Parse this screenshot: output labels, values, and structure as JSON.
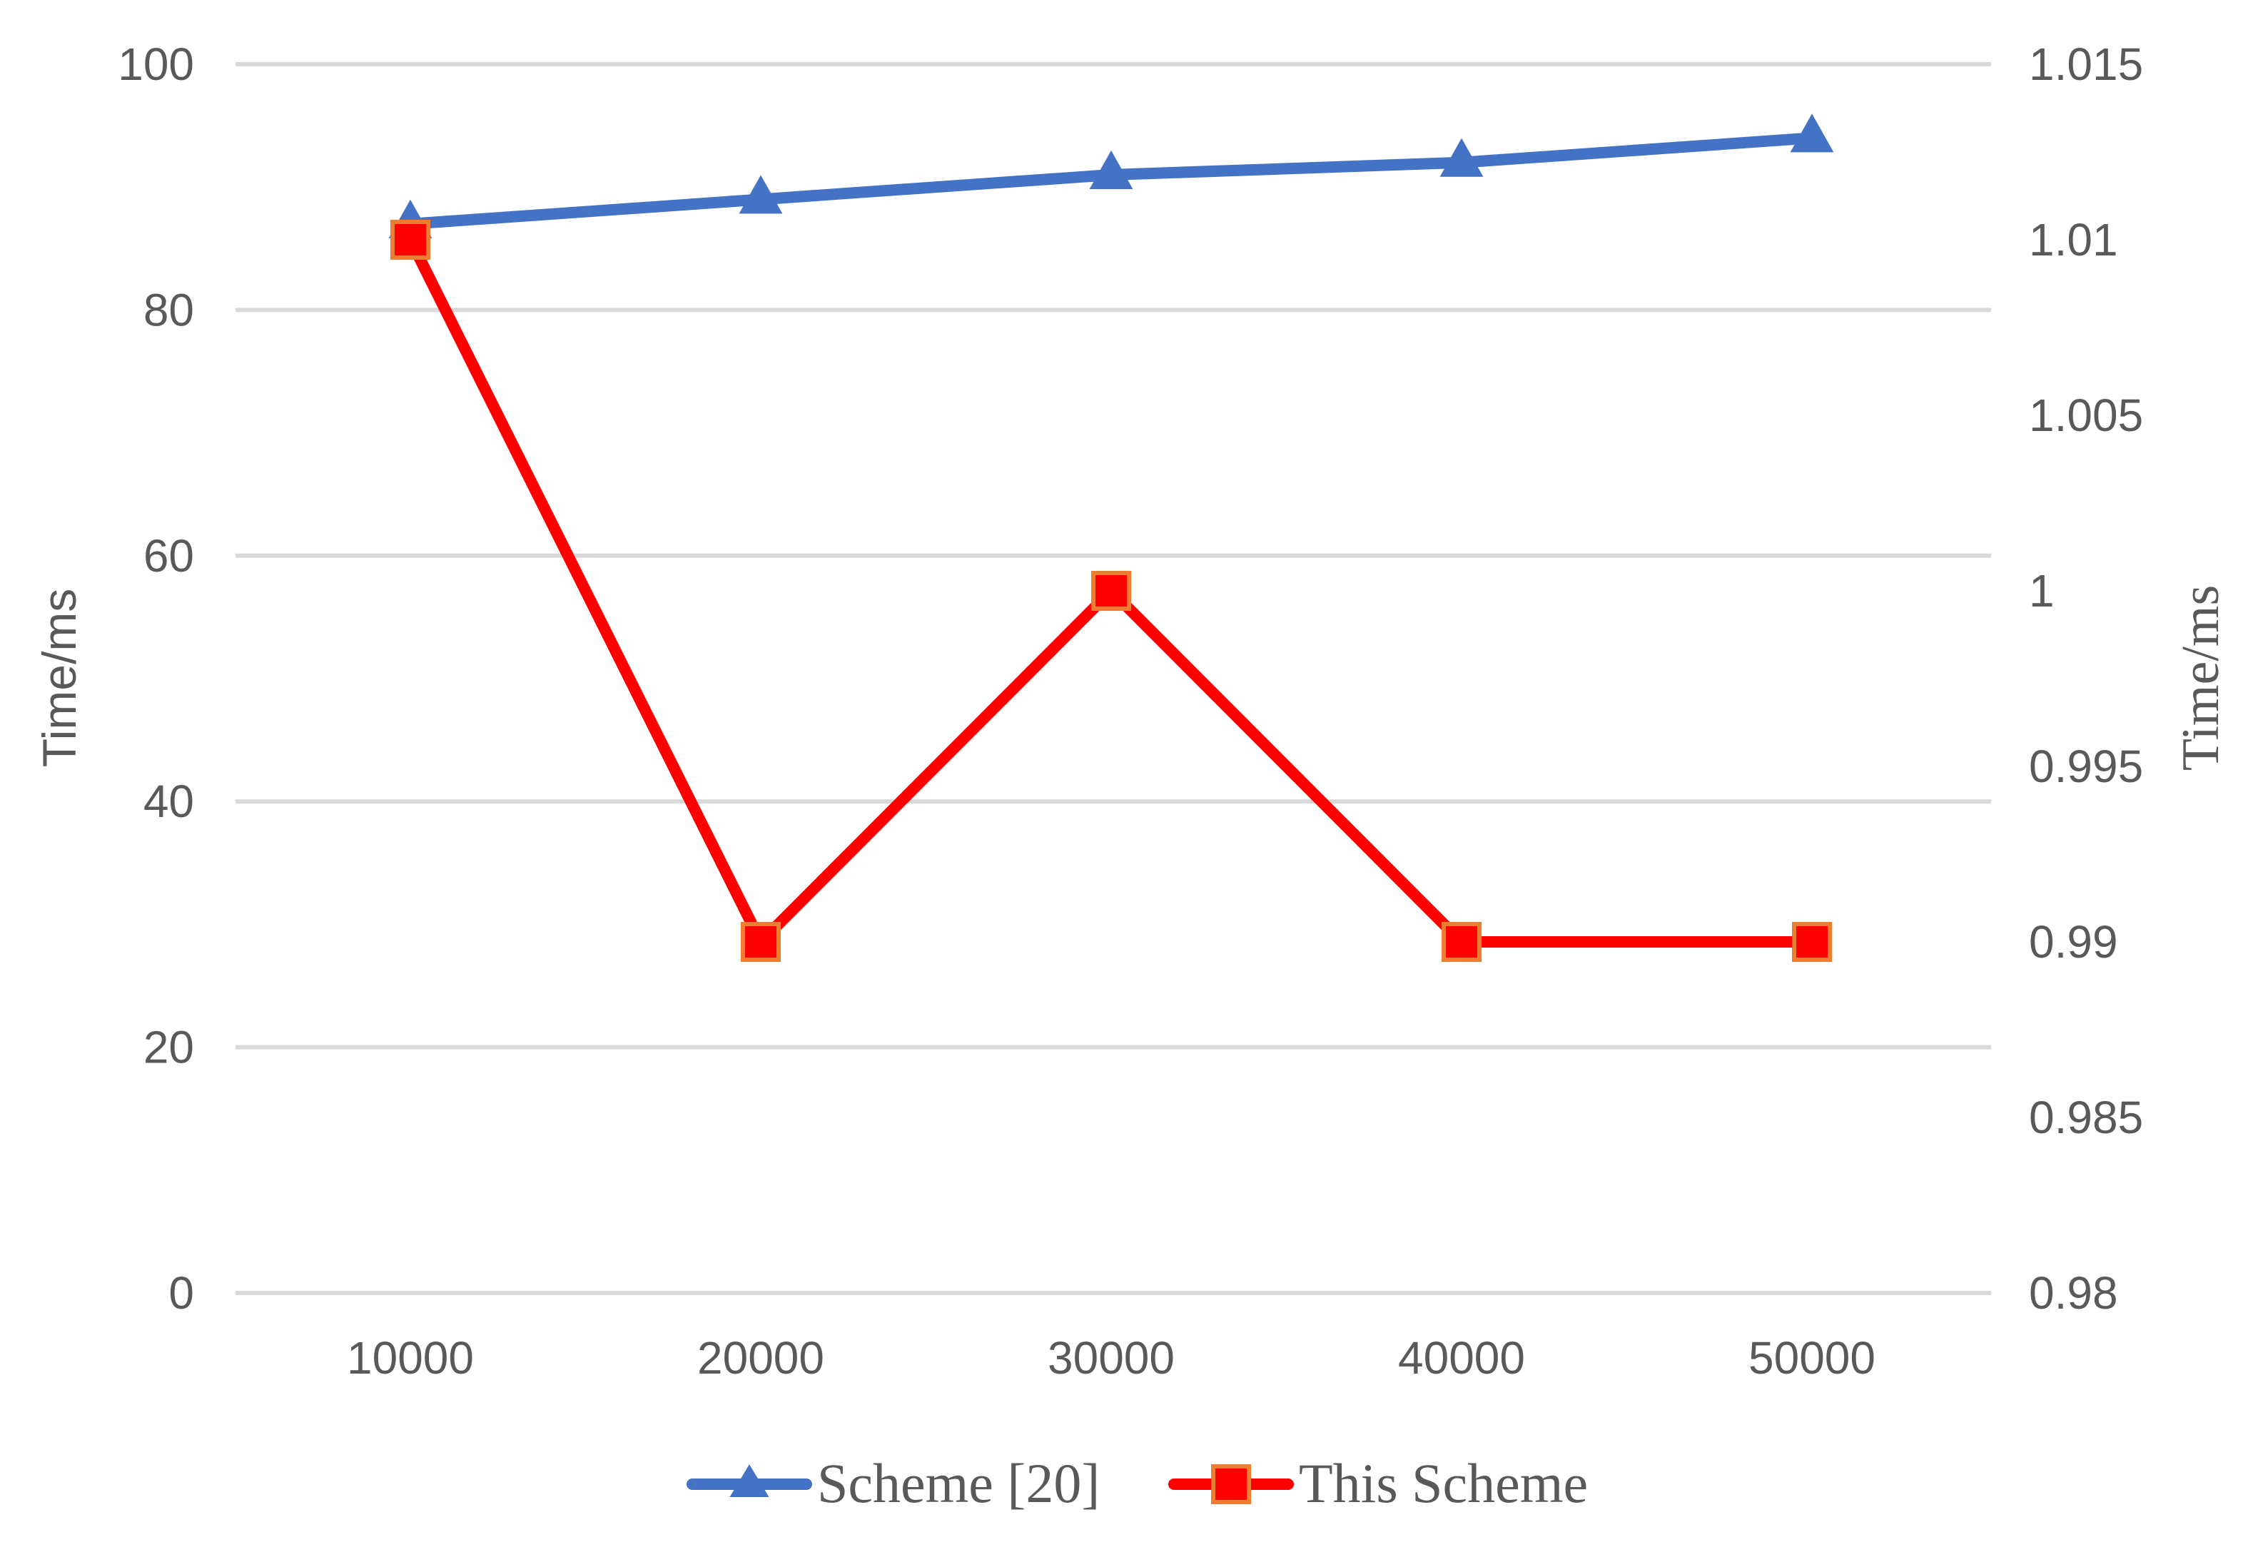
{
  "chart_data": {
    "type": "line",
    "categories": [
      "10000",
      "20000",
      "30000",
      "40000",
      "50000"
    ],
    "y_left": {
      "label": "Time/ms",
      "range": [
        0,
        100
      ],
      "ticks": [
        "0",
        "20",
        "40",
        "60",
        "80",
        "100"
      ]
    },
    "y_right": {
      "label": "Time/ms",
      "range": [
        0.98,
        1.015
      ],
      "ticks": [
        "0.98",
        "0.985",
        "0.99",
        "0.995",
        "1",
        "1.005",
        "1.01",
        "1.015"
      ]
    },
    "grid": true,
    "legend_position": "bottom",
    "series": [
      {
        "name": "Scheme [20]",
        "axis": "left",
        "color": "#4472C4",
        "marker": "triangle",
        "values": [
          87,
          89,
          91,
          92,
          94
        ]
      },
      {
        "name": "This Scheme",
        "axis": "right",
        "color": "#FF0000",
        "marker_edge": "#ED7D31",
        "marker": "square",
        "values": [
          1.01,
          0.99,
          1.0,
          0.99,
          0.99
        ]
      }
    ]
  }
}
